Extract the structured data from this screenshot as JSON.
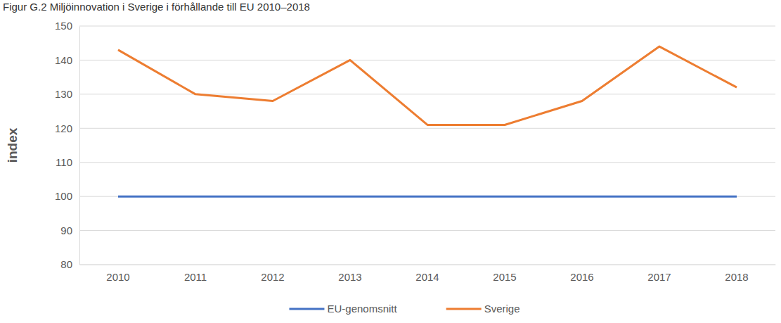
{
  "chart_data": {
    "type": "line",
    "title": "Figur G.2 Miljöinnovation i Sverige i förhållande till EU 2010–2018",
    "y_label": "index",
    "categories": [
      "2010",
      "2011",
      "2012",
      "2013",
      "2014",
      "2015",
      "2016",
      "2017",
      "2018"
    ],
    "series": [
      {
        "name": "EU-genomsnitt",
        "color": "#4472c4",
        "values": [
          100,
          100,
          100,
          100,
          100,
          100,
          100,
          100,
          100
        ]
      },
      {
        "name": "Sverige",
        "color": "#ed7d31",
        "values": [
          143,
          130,
          128,
          140,
          121,
          121,
          128,
          144,
          132
        ]
      }
    ],
    "ylim": [
      80,
      150
    ],
    "yticks": [
      80,
      90,
      100,
      110,
      120,
      130,
      140,
      150
    ],
    "grid": true,
    "legend": "bottom"
  }
}
